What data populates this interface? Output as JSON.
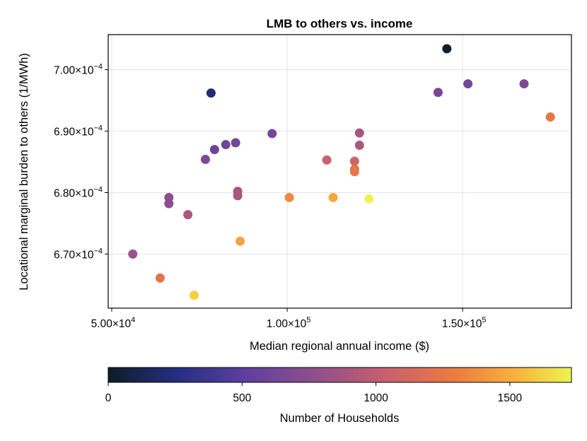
{
  "chart_data": {
    "type": "scatter",
    "title": "LMB to others vs. income",
    "xlabel": "Median regional annual income ($)",
    "ylabel": "Locational marginal burden to others (1/MWh)",
    "xlim": [
      49000,
      181000
    ],
    "ylim": [
      0.0006612,
      0.0007057
    ],
    "x_ticks": [
      {
        "value": 50000,
        "label": "5.00×10",
        "exp": "4"
      },
      {
        "value": 100000,
        "label": "1.00×10",
        "exp": "5"
      },
      {
        "value": 150000,
        "label": "1.50×10",
        "exp": "5"
      }
    ],
    "y_ticks": [
      {
        "value": 0.00067,
        "label": "6.70×10",
        "exp": "−4"
      },
      {
        "value": 0.00068,
        "label": "6.80×10",
        "exp": "−4"
      },
      {
        "value": 0.00069,
        "label": "6.90×10",
        "exp": "−4"
      },
      {
        "value": 0.0007,
        "label": "7.00×10",
        "exp": "−4"
      }
    ],
    "grid": true,
    "colorbar": {
      "label": "Number of Households",
      "min": 0,
      "max": 1730,
      "colormap": "plasma",
      "ticks": [
        {
          "value": 0,
          "label": "0"
        },
        {
          "value": 500,
          "label": "500"
        },
        {
          "value": 1000,
          "label": "1000"
        },
        {
          "value": 1500,
          "label": "1500"
        }
      ]
    },
    "points": [
      {
        "x": 145500,
        "y": 0.0007034,
        "color_value": 20
      },
      {
        "x": 78300,
        "y": 0.0006962,
        "color_value": 220
      },
      {
        "x": 143000,
        "y": 0.0006963,
        "color_value": 640
      },
      {
        "x": 151500,
        "y": 0.0006977,
        "color_value": 640
      },
      {
        "x": 167500,
        "y": 0.0006977,
        "color_value": 690
      },
      {
        "x": 175000,
        "y": 0.0006923,
        "color_value": 1250
      },
      {
        "x": 95700,
        "y": 0.0006896,
        "color_value": 640
      },
      {
        "x": 85300,
        "y": 0.0006881,
        "color_value": 620
      },
      {
        "x": 82500,
        "y": 0.0006878,
        "color_value": 620
      },
      {
        "x": 79300,
        "y": 0.000687,
        "color_value": 600
      },
      {
        "x": 76700,
        "y": 0.0006854,
        "color_value": 690
      },
      {
        "x": 120600,
        "y": 0.0006897,
        "color_value": 890
      },
      {
        "x": 120600,
        "y": 0.0006877,
        "color_value": 900
      },
      {
        "x": 111300,
        "y": 0.0006853,
        "color_value": 1060
      },
      {
        "x": 119200,
        "y": 0.0006851,
        "color_value": 1090
      },
      {
        "x": 119200,
        "y": 0.0006838,
        "color_value": 1200
      },
      {
        "x": 119200,
        "y": 0.0006834,
        "color_value": 1260
      },
      {
        "x": 85900,
        "y": 0.0006802,
        "color_value": 900
      },
      {
        "x": 85900,
        "y": 0.0006795,
        "color_value": 900
      },
      {
        "x": 66300,
        "y": 0.0006792,
        "color_value": 760
      },
      {
        "x": 66300,
        "y": 0.0006782,
        "color_value": 760
      },
      {
        "x": 71700,
        "y": 0.0006764,
        "color_value": 900
      },
      {
        "x": 100600,
        "y": 0.0006792,
        "color_value": 1350
      },
      {
        "x": 113100,
        "y": 0.0006792,
        "color_value": 1480
      },
      {
        "x": 123300,
        "y": 0.000679,
        "color_value": 1720
      },
      {
        "x": 86600,
        "y": 0.0006721,
        "color_value": 1460
      },
      {
        "x": 56000,
        "y": 0.00067,
        "color_value": 830
      },
      {
        "x": 63800,
        "y": 0.0006661,
        "color_value": 1230
      },
      {
        "x": 73500,
        "y": 0.0006633,
        "color_value": 1620
      }
    ]
  }
}
